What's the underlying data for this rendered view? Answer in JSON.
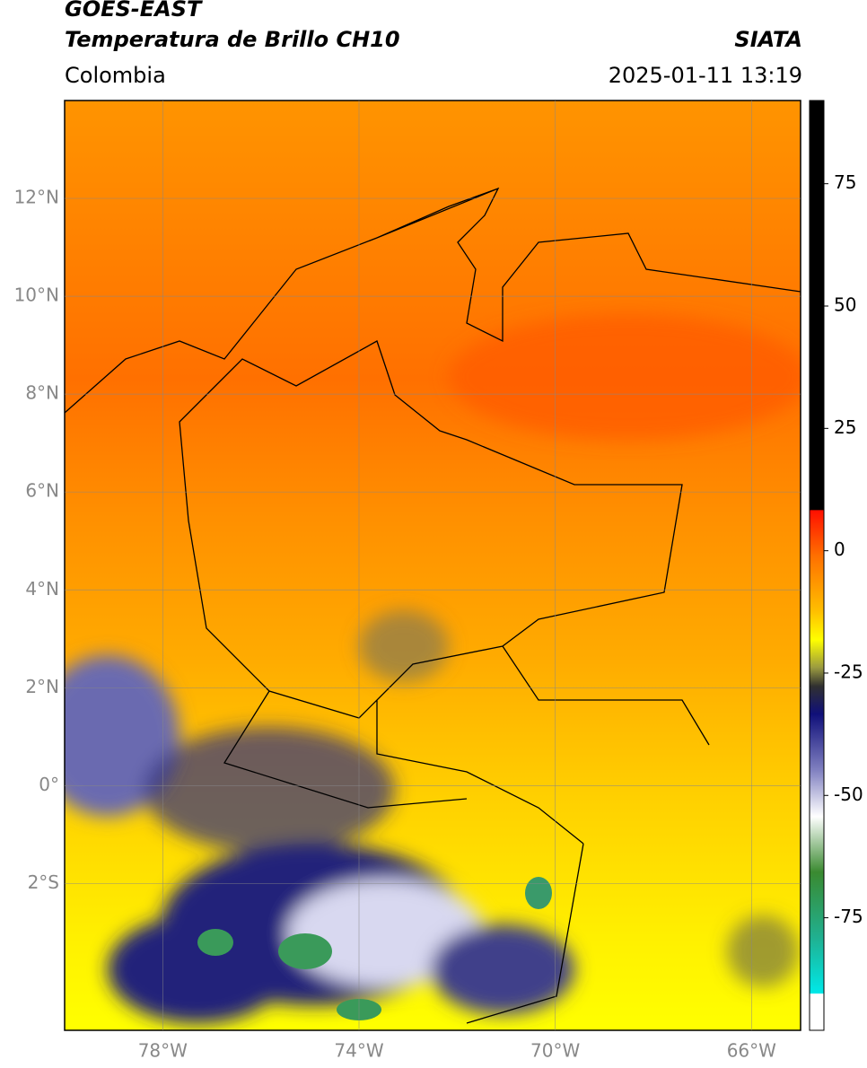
{
  "header": {
    "satellite": "GOES-EAST",
    "product": "Temperatura de Brillo CH10",
    "source": "SIATA",
    "region": "Colombia",
    "datetime": "2025-01-11 13:19"
  },
  "map": {
    "lat_range": [
      -5,
      14
    ],
    "lon_range": [
      -80,
      -65
    ],
    "lat_ticks": [
      {
        "value": 12,
        "label": "12°N"
      },
      {
        "value": 10,
        "label": "10°N"
      },
      {
        "value": 8,
        "label": "8°N"
      },
      {
        "value": 6,
        "label": "6°N"
      },
      {
        "value": 4,
        "label": "4°N"
      },
      {
        "value": 2,
        "label": "2°N"
      },
      {
        "value": 0,
        "label": "0°"
      },
      {
        "value": -2,
        "label": "2°S"
      }
    ],
    "lon_ticks": [
      {
        "value": -78,
        "label": "78°W"
      },
      {
        "value": -74,
        "label": "74°W"
      },
      {
        "value": -70,
        "label": "70°W"
      },
      {
        "value": -66,
        "label": "66°W"
      }
    ]
  },
  "colorbar": {
    "range": [
      -98,
      92
    ],
    "ticks": [
      75,
      50,
      25,
      0,
      -25,
      -50,
      -75
    ]
  }
}
